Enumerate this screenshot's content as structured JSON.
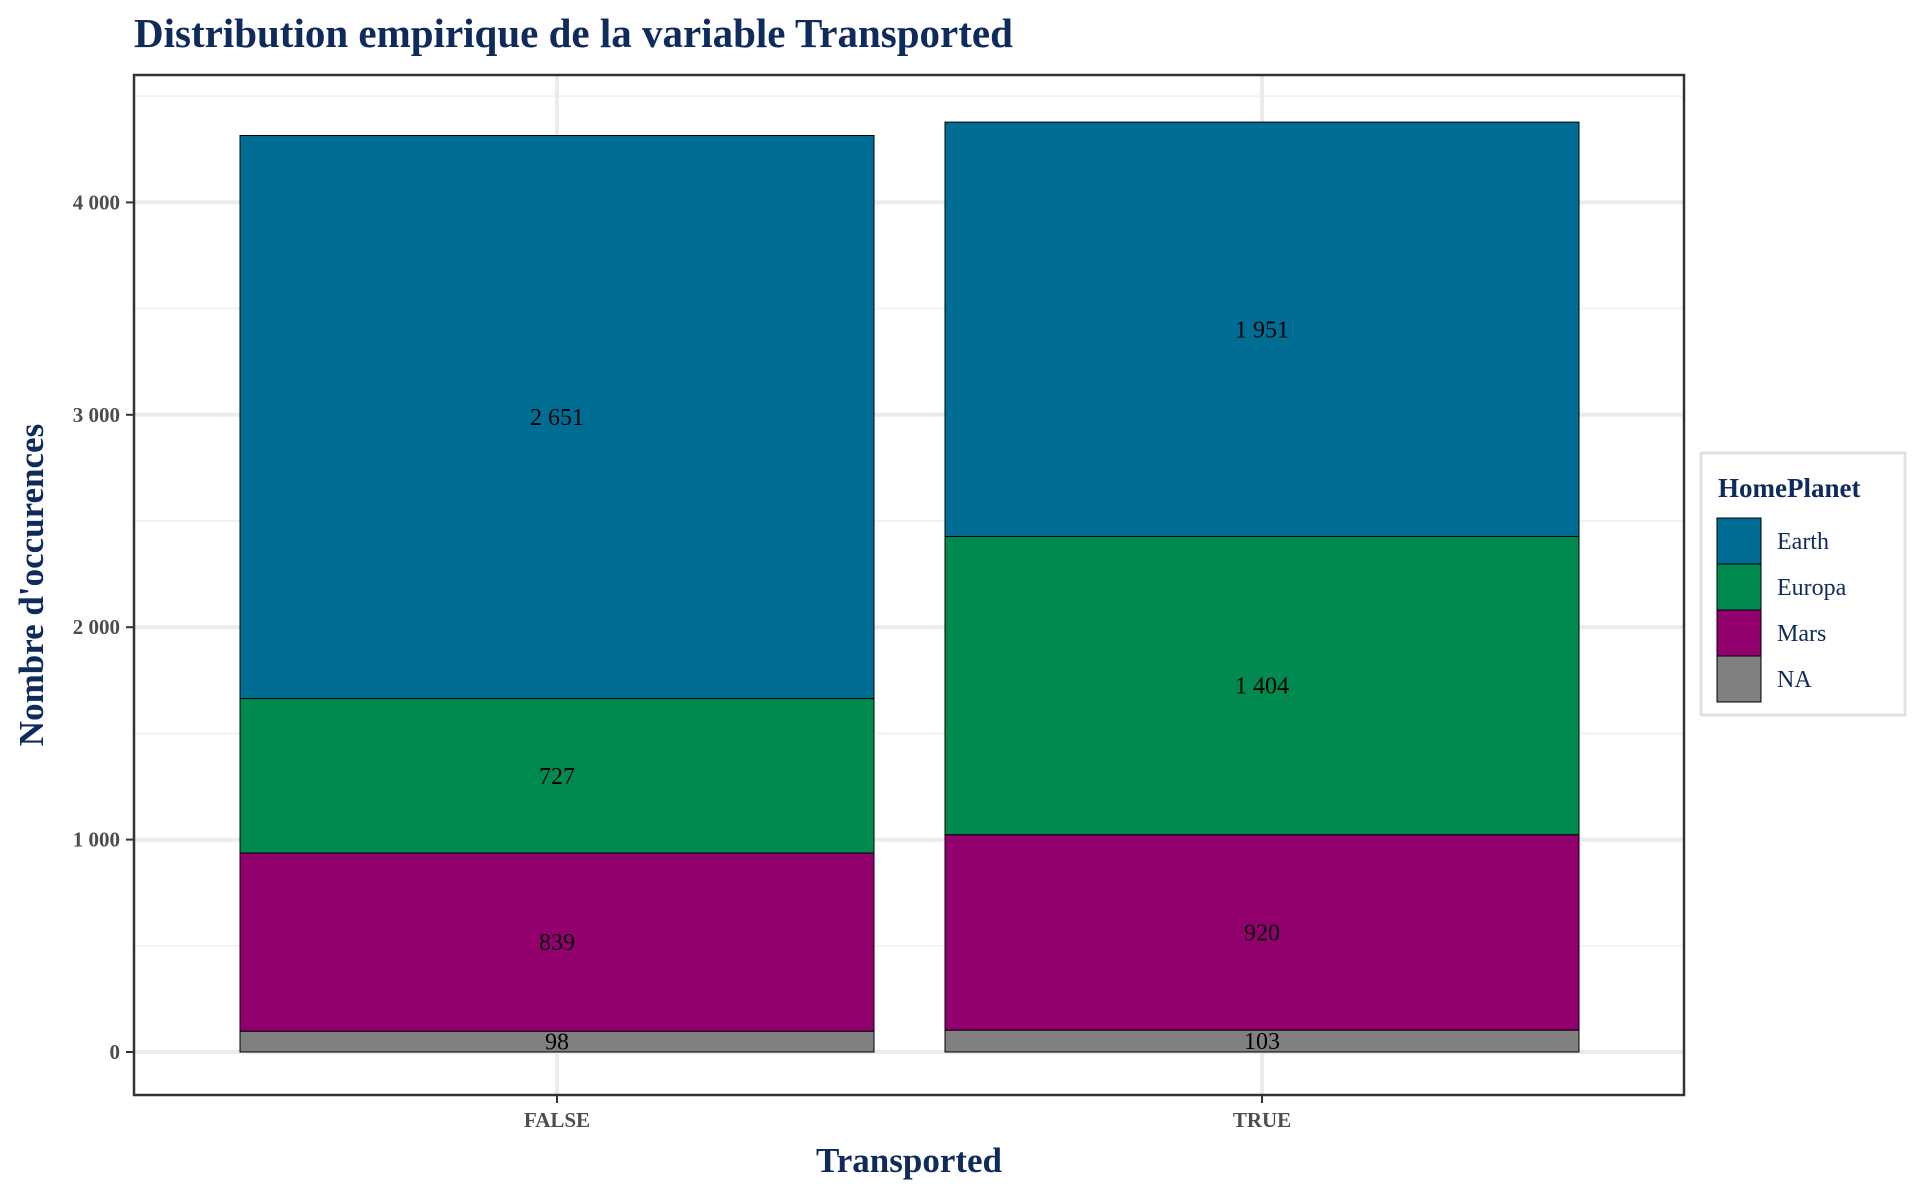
{
  "chart_data": {
    "type": "bar",
    "stacked": true,
    "title": "Distribution empirique de la variable Transported",
    "xlabel": "Transported",
    "ylabel": "Nombre d'occurences",
    "categories": [
      "FALSE",
      "TRUE"
    ],
    "ylim": [
      0,
      4400
    ],
    "yticks": [
      0,
      1000,
      2000,
      3000,
      4000
    ],
    "ytick_labels": [
      "0",
      "1 000",
      "2 000",
      "3 000",
      "4 000"
    ],
    "grid": true,
    "legend": {
      "title": "HomePlanet",
      "position": "right"
    },
    "series": [
      {
        "name": "NA",
        "values": [
          98,
          103
        ],
        "labels": [
          "98",
          "103"
        ],
        "color": "#808080"
      },
      {
        "name": "Mars",
        "values": [
          839,
          920
        ],
        "labels": [
          "839",
          "920"
        ],
        "color": "#92006e"
      },
      {
        "name": "Europa",
        "values": [
          727,
          1404
        ],
        "labels": [
          "727",
          "1 404"
        ],
        "color": "#008a50"
      },
      {
        "name": "Earth",
        "values": [
          2651,
          1951
        ],
        "labels": [
          "2 651",
          "1 951"
        ],
        "color": "#006e94"
      }
    ],
    "legend_order": [
      "Earth",
      "Europa",
      "Mars",
      "NA"
    ]
  }
}
